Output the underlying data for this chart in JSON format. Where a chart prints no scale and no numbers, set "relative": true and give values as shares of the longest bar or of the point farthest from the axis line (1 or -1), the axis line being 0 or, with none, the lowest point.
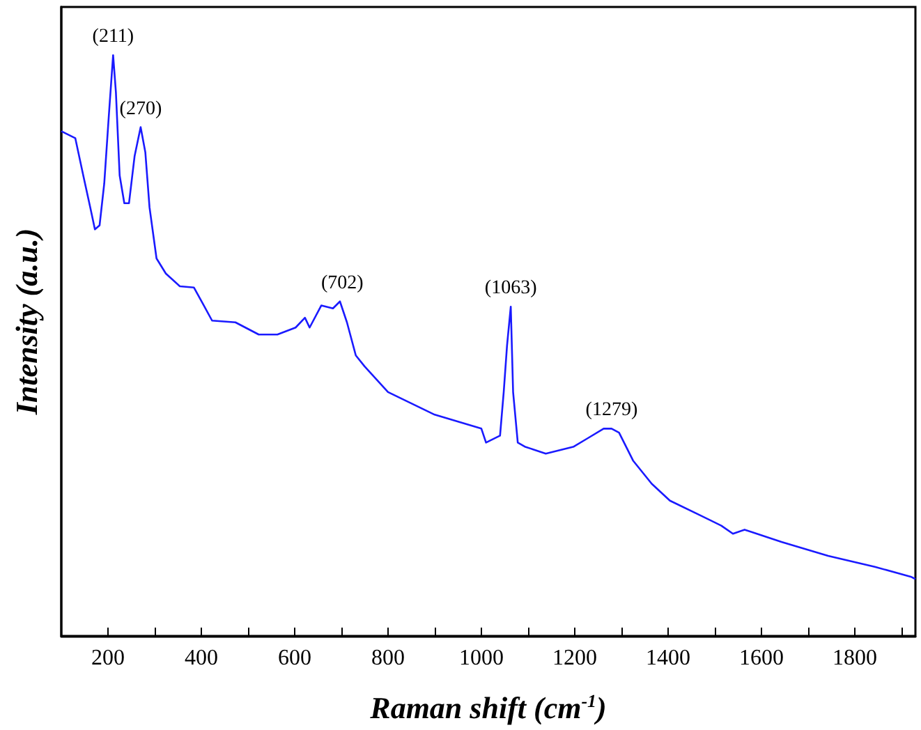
{
  "chart_data": {
    "type": "line",
    "xlabel": "Raman shift (cm$^{-1}$)",
    "ylabel": "Intensity (a.u.)",
    "relative": true,
    "marker": "none",
    "grid": false,
    "xlim": [
      100,
      1930
    ],
    "xticks": [
      200,
      {
        "value": 300,
        "label": null
      },
      400,
      {
        "value": 500,
        "label": null
      },
      600,
      {
        "value": 700,
        "label": null
      },
      800,
      {
        "value": 900,
        "label": null
      },
      1000,
      {
        "value": 1100,
        "label": null
      },
      1200,
      {
        "value": 1300,
        "label": null
      },
      1400,
      {
        "value": 1500,
        "label": null
      },
      1600,
      {
        "value": 1700,
        "label": null
      },
      1800,
      {
        "value": 1900,
        "label": null
      }
    ],
    "series": [
      {
        "color": "#1a1aff",
        "x": [
          100,
          130,
          147,
          162,
          172,
          182,
          192,
          202,
          211,
          217,
          225,
          235,
          245,
          257,
          270,
          280,
          289,
          304,
          324,
          354,
          384,
          404,
          423,
          473,
          523,
          563,
          602,
          622,
          632,
          657,
          682,
          697,
          712,
          731,
          750,
          800,
          900,
          1000,
          1010,
          1040,
          1048,
          1055,
          1063,
          1068,
          1078,
          1093,
          1138,
          1198,
          1227,
          1262,
          1279,
          1295,
          1325,
          1365,
          1404,
          1463,
          1514,
          1539,
          1564,
          1643,
          1743,
          1843,
          1920,
          1930
        ],
        "values": [
          0.869,
          0.857,
          0.793,
          0.738,
          0.7,
          0.707,
          0.779,
          0.898,
          1.0,
          0.936,
          0.793,
          0.745,
          0.745,
          0.826,
          0.876,
          0.833,
          0.738,
          0.65,
          0.624,
          0.602,
          0.6,
          0.571,
          0.543,
          0.54,
          0.519,
          0.519,
          0.531,
          0.548,
          0.531,
          0.569,
          0.564,
          0.576,
          0.54,
          0.483,
          0.464,
          0.42,
          0.381,
          0.357,
          0.333,
          0.345,
          0.421,
          0.5,
          0.567,
          0.42,
          0.333,
          0.326,
          0.314,
          0.326,
          0.34,
          0.357,
          0.357,
          0.35,
          0.302,
          0.262,
          0.233,
          0.21,
          0.19,
          0.176,
          0.183,
          0.162,
          0.138,
          0.119,
          0.102,
          0.098
        ]
      }
    ],
    "annotations": [
      {
        "text": "(211)",
        "x": 211,
        "y": 1.0
      },
      {
        "text": "(270)",
        "x": 270,
        "y": 0.876
      },
      {
        "text": "(702)",
        "x": 702,
        "y": 0.576
      },
      {
        "text": "(1063)",
        "x": 1063,
        "y": 0.567
      },
      {
        "text": "(1279)",
        "x": 1279,
        "y": 0.357
      }
    ]
  }
}
